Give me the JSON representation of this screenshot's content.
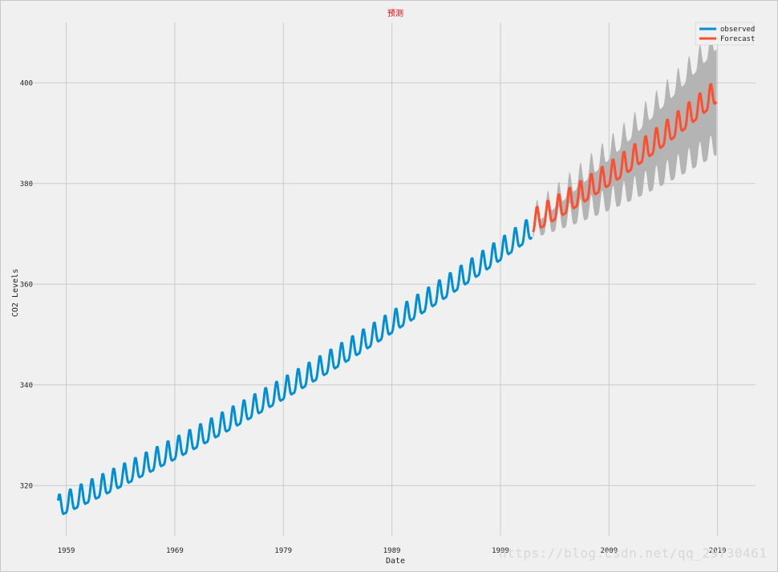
{
  "chart_data": {
    "type": "line",
    "title": "预测",
    "xlabel": "Date",
    "ylabel": "CO2 Levels",
    "xlim": [
      1956.0,
      2022.5
    ],
    "ylim": [
      310.0,
      412.0
    ],
    "x_ticks": [
      1959,
      1969,
      1979,
      1989,
      1999,
      2009,
      2019
    ],
    "x_tick_labels": [
      "1959",
      "1969",
      "1979",
      "1989",
      "1999",
      "2009",
      "2019"
    ],
    "y_ticks": [
      320,
      340,
      360,
      380,
      400
    ],
    "y_tick_labels": [
      "320",
      "340",
      "360",
      "380",
      "400"
    ],
    "grid": true,
    "legend_position": "top-right",
    "series": [
      {
        "name": "observed",
        "color": "#008fd5",
        "x_start": 1958.25,
        "x_end": 2001.9,
        "trend_start": 315.4,
        "trend_end": 370.8,
        "seasonal_amplitude": 2.7
      },
      {
        "name": "Forecast",
        "color": "#fc4f30",
        "x_start": 2002.0,
        "x_end": 2018.9,
        "trend_start": 372.0,
        "trend_end": 397.8,
        "seasonal_amplitude": 2.9
      }
    ],
    "confidence_band": {
      "color": "#b0b0b0",
      "half_width_start": 1.2,
      "half_width_end": 10.5
    }
  },
  "watermark": "https://blog.csdn.net/qq_29730461"
}
